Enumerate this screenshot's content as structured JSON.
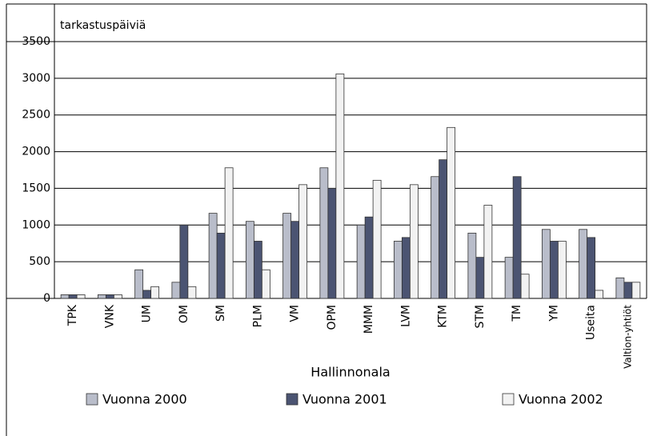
{
  "chart_data": {
    "type": "bar",
    "ylabel": "tarkastuspäiviä",
    "xlabel": "Hallinnonala",
    "categories": [
      "TPK",
      "VNK",
      "UM",
      "OM",
      "SM",
      "PLM",
      "VM",
      "OPM",
      "MMM",
      "LVM",
      "KTM",
      "STM",
      "TM",
      "YM",
      "Useita",
      "Valtion-yhtiöt"
    ],
    "series": [
      {
        "name": "Vuonna 2000",
        "color": "#b9bdca",
        "values": [
          50,
          50,
          390,
          220,
          1160,
          1050,
          1160,
          1780,
          1000,
          780,
          1660,
          890,
          560,
          940,
          940,
          280
        ]
      },
      {
        "name": "Vuonna 2001",
        "color": "#4b5472",
        "values": [
          50,
          50,
          110,
          1000,
          890,
          780,
          1050,
          1500,
          1110,
          830,
          1890,
          560,
          1660,
          780,
          830,
          220
        ]
      },
      {
        "name": "Vuonna 2002",
        "color": "#f2f2f2",
        "values": [
          50,
          50,
          160,
          160,
          1780,
          390,
          1550,
          3060,
          1610,
          1550,
          2330,
          1270,
          330,
          780,
          110,
          220
        ]
      }
    ],
    "ylim": [
      0,
      3500
    ],
    "yticks": [
      0,
      500,
      1000,
      1500,
      2000,
      2500,
      3000,
      3500
    ],
    "grid": true
  }
}
